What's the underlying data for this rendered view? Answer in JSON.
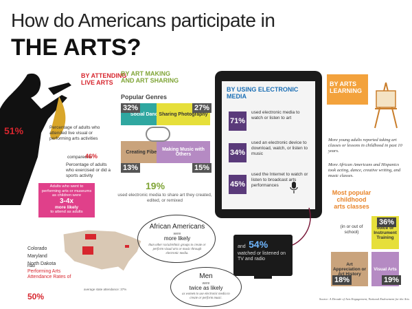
{
  "title": {
    "line1": "How do Americans participate in",
    "line2": "THE ARTS?"
  },
  "attending": {
    "heading": "BY ATTENDING LIVE ARTS",
    "pct": "51%",
    "desc": "Percentage of adults who attended live visual or performing arts activities",
    "compared_prefix": "compared to",
    "compared_pct": "46%",
    "compared_desc": "Percentage of adults who exercised or did a sports activity",
    "pink_text": "Adults who went to performing arts or museums as children were",
    "pink_ratio": "3-4x",
    "pink_more": "more likely",
    "pink_end": "to attend as adults"
  },
  "making": {
    "heading": "BY ART MAKING AND ART SHARING",
    "genres_title": "Popular Genres",
    "genres": [
      {
        "pct": "32%",
        "label": "Social Dancing",
        "color": "#2fa7a0"
      },
      {
        "pct": "27%",
        "label": "Sharing Photography",
        "color": "#e6df3a"
      },
      {
        "pct": "13%",
        "label": "Creating Fiber Arts",
        "color": "#c9a37c"
      },
      {
        "pct": "15%",
        "label": "Making Music with Others",
        "color": "#b58ac3"
      }
    ],
    "share_pct": "19%",
    "share_desc": "used electronic media to share art they created, edited, or remixed"
  },
  "electronic": {
    "heading": "BY USING ELECTRONIC MEDIA",
    "items": [
      {
        "pct": "71%",
        "desc": "used electronic media to watch or listen to art"
      },
      {
        "pct": "34%",
        "desc": "used an electronic device to download, watch, or listen to music"
      },
      {
        "pct": "45%",
        "desc": "used the Internet to watch or listen to broadcast arts performances"
      }
    ],
    "tv_prefix": "and",
    "tv_pct": "54%",
    "tv_desc": "watched or listened on TV and radio"
  },
  "learning": {
    "heading": "BY ARTS LEARNING",
    "para1": "More young adults reported taking art classes or lessons in childhood in past 10 years.",
    "para2": "More African Americans and Hispanics took acting, dance, creative writing, and music classes.",
    "classes_title": "Most popular childhood arts classes",
    "classes_sub": "(in or out of school)",
    "classes": [
      {
        "pct": "36%",
        "label": "Voice or Instrument Training",
        "color": "#e6df3a"
      },
      {
        "pct": "18%",
        "label": "Art Appreciation or Art History",
        "color": "#c9a37c"
      },
      {
        "pct": "19%",
        "label": "Visual Arts",
        "color": "#b58ac3"
      }
    ]
  },
  "map": {
    "states": [
      "Colorado",
      "Maryland",
      "North Dakota"
    ],
    "and": "had",
    "highlight": "Performing Arts Attendance Rates of",
    "rate": "50%",
    "note": "average state attendance: 37%"
  },
  "african": {
    "title": "African Americans",
    "were": "were",
    "more": "more likely",
    "desc": "than other racial/ethnic groups to create or perform visual arts or music through electronic media."
  },
  "men": {
    "title": "Men",
    "were": "were",
    "twice": "twice as likely",
    "desc": "as women to use electronic media to create or perform music."
  },
  "source": "Source: A Decade of Arts Engagement, National Endowment for the Arts"
}
